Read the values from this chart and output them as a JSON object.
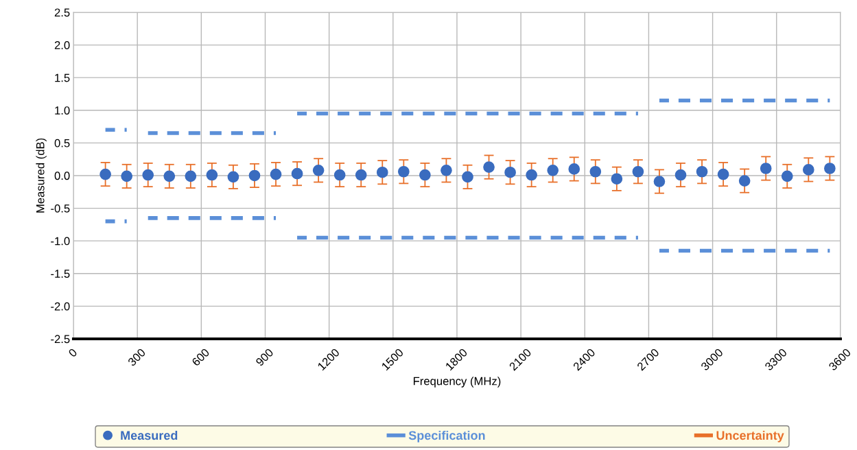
{
  "chart_data": {
    "type": "scatter",
    "xlabel": "Frequency (MHz)",
    "ylabel": "Measured (dB)",
    "x": [
      150,
      250,
      350,
      450,
      550,
      650,
      750,
      850,
      950,
      1050,
      1150,
      1250,
      1350,
      1450,
      1550,
      1650,
      1750,
      1850,
      1950,
      2050,
      2150,
      2250,
      2350,
      2450,
      2550,
      2650,
      2750,
      2850,
      2950,
      3050,
      3150,
      3250,
      3350,
      3450,
      3550
    ],
    "series": [
      {
        "name": "Measured",
        "marker": "circle",
        "color": "#3a6cbf",
        "values": [
          0.02,
          -0.01,
          0.01,
          -0.01,
          -0.01,
          0.01,
          -0.02,
          0.0,
          0.02,
          0.03,
          0.08,
          0.01,
          0.01,
          0.05,
          0.06,
          0.01,
          0.08,
          -0.02,
          0.13,
          0.05,
          0.01,
          0.08,
          0.1,
          0.06,
          -0.05,
          0.06,
          -0.09,
          0.01,
          0.06,
          0.02,
          -0.08,
          0.11,
          -0.01,
          0.09,
          0.11
        ],
        "errors": [
          0.18,
          0.18,
          0.18,
          0.18,
          0.18,
          0.18,
          0.18,
          0.18,
          0.18,
          0.18,
          0.18,
          0.18,
          0.18,
          0.18,
          0.18,
          0.18,
          0.18,
          0.18,
          0.18,
          0.18,
          0.18,
          0.18,
          0.18,
          0.18,
          0.18,
          0.18,
          0.18,
          0.18,
          0.18,
          0.18,
          0.18,
          0.18,
          0.18,
          0.18,
          0.18
        ]
      },
      {
        "name": "Specification",
        "type": "line",
        "line_style": "dashed",
        "color": "#5b8fd8",
        "values": [
          0.7,
          0.7,
          0.65,
          0.65,
          0.65,
          0.65,
          0.65,
          0.65,
          0.65,
          0.95,
          0.95,
          0.95,
          0.95,
          0.95,
          0.95,
          0.95,
          0.95,
          0.95,
          0.95,
          0.95,
          0.95,
          0.95,
          0.95,
          0.95,
          0.95,
          0.95,
          1.15,
          1.15,
          1.15,
          1.15,
          1.15,
          1.15,
          1.15,
          1.15,
          1.15
        ]
      },
      {
        "type": "line",
        "line_style": "dashed",
        "color": "#5b8fd8",
        "values": [
          -0.7,
          -0.7,
          -0.65,
          -0.65,
          -0.65,
          -0.65,
          -0.65,
          -0.65,
          -0.65,
          -0.95,
          -0.95,
          -0.95,
          -0.95,
          -0.95,
          -0.95,
          -0.95,
          -0.95,
          -0.95,
          -0.95,
          -0.95,
          -0.95,
          -0.95,
          -0.95,
          -0.95,
          -0.95,
          -0.95,
          -1.15,
          -1.15,
          -1.15,
          -1.15,
          -1.15,
          -1.15,
          -1.15,
          -1.15,
          -1.15
        ]
      },
      {
        "name": "Uncertainty",
        "color": "#e8702a",
        "values": [
          null,
          null,
          null,
          null,
          null,
          null,
          null,
          null,
          null,
          null,
          null,
          null,
          null,
          null,
          null,
          null,
          null,
          null,
          null,
          null,
          null,
          null,
          null,
          null,
          null,
          null,
          null,
          null,
          null,
          null,
          null,
          null,
          null,
          null,
          null
        ]
      }
    ],
    "xlim": [
      0,
      3600
    ],
    "xticks": [
      0,
      300,
      600,
      900,
      1200,
      1500,
      1800,
      2100,
      2400,
      2700,
      3000,
      3300,
      3600
    ],
    "ylim": [
      -2.5,
      2.5
    ],
    "yticks": [
      {
        "value": -2.5,
        "label": "-2.5"
      },
      {
        "value": -2,
        "label": "-2.0"
      },
      {
        "value": -1.5,
        "label": "-1.5"
      },
      {
        "value": -1,
        "label": "-1.0"
      },
      {
        "value": -0.5,
        "label": "-0.5"
      },
      {
        "value": 0,
        "label": "0.0"
      },
      {
        "value": 0.5,
        "label": "0.5"
      },
      {
        "value": 1,
        "label": "1.0"
      },
      {
        "value": 1.5,
        "label": "1.5"
      },
      {
        "value": 2,
        "label": "2.0"
      },
      {
        "value": 2.5,
        "label": "2.5"
      }
    ],
    "grid": true,
    "legend": "bottom"
  }
}
